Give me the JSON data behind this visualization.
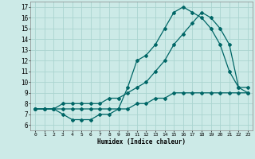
{
  "xlabel": "Humidex (Indice chaleur)",
  "bg_color": "#cceae7",
  "grid_color": "#aad4d0",
  "line_color": "#006666",
  "xlim": [
    -0.5,
    23.5
  ],
  "ylim": [
    5.5,
    17.5
  ],
  "xticks": [
    0,
    1,
    2,
    3,
    4,
    5,
    6,
    7,
    8,
    9,
    10,
    11,
    12,
    13,
    14,
    15,
    16,
    17,
    18,
    19,
    20,
    21,
    22,
    23
  ],
  "yticks": [
    6,
    7,
    8,
    9,
    10,
    11,
    12,
    13,
    14,
    15,
    16,
    17
  ],
  "series1_x": [
    0,
    1,
    2,
    3,
    4,
    5,
    6,
    7,
    8,
    9,
    10,
    11,
    12,
    13,
    14,
    15,
    16,
    17,
    18,
    19,
    20,
    21,
    22,
    23
  ],
  "series1_y": [
    7.5,
    7.5,
    7.5,
    7.0,
    6.5,
    6.5,
    6.5,
    7.0,
    7.0,
    7.5,
    9.5,
    12.0,
    12.5,
    13.5,
    15.0,
    16.5,
    17.0,
    16.5,
    16.0,
    15.0,
    13.5,
    11.0,
    9.5,
    9.5
  ],
  "series2_x": [
    0,
    1,
    2,
    3,
    4,
    5,
    6,
    7,
    8,
    9,
    10,
    11,
    12,
    13,
    14,
    15,
    16,
    17,
    18,
    19,
    20,
    21,
    22,
    23
  ],
  "series2_y": [
    7.5,
    7.5,
    7.5,
    8.0,
    8.0,
    8.0,
    8.0,
    8.0,
    8.5,
    8.5,
    9.0,
    9.5,
    10.0,
    11.0,
    12.0,
    13.5,
    14.5,
    15.5,
    16.5,
    16.0,
    15.0,
    13.5,
    9.5,
    9.0
  ],
  "series3_x": [
    0,
    1,
    2,
    3,
    4,
    5,
    6,
    7,
    8,
    9,
    10,
    11,
    12,
    13,
    14,
    15,
    16,
    17,
    18,
    19,
    20,
    21,
    22,
    23
  ],
  "series3_y": [
    7.5,
    7.5,
    7.5,
    7.5,
    7.5,
    7.5,
    7.5,
    7.5,
    7.5,
    7.5,
    7.5,
    8.0,
    8.0,
    8.5,
    8.5,
    9.0,
    9.0,
    9.0,
    9.0,
    9.0,
    9.0,
    9.0,
    9.0,
    9.0
  ]
}
